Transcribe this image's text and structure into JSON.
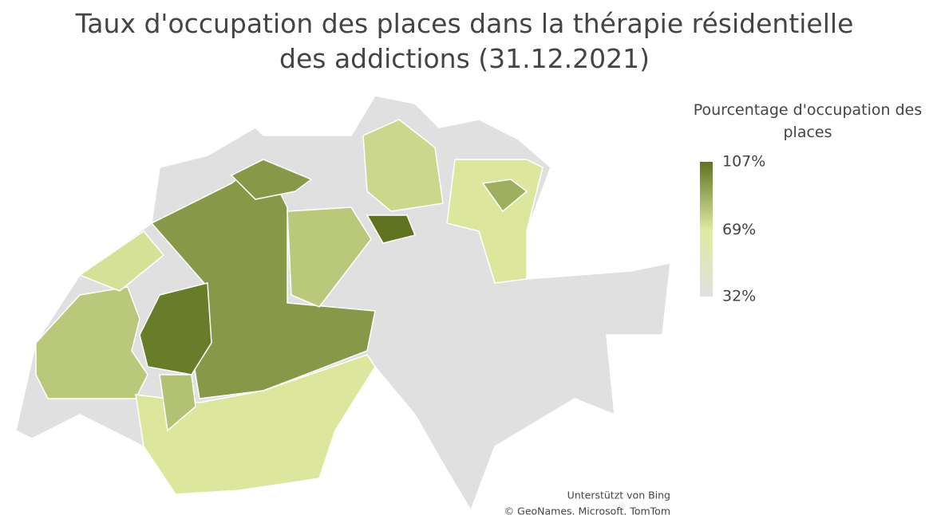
{
  "chart_data": {
    "type": "choropleth",
    "title": "Taux d'occupation des places dans la thérapie résidentielle des addictions (31.12.2021)",
    "values": [
      80,
      72,
      95,
      104,
      95,
      80,
      75,
      107,
      70,
      88,
      70,
      82
    ],
    "legend": {
      "title": "Pourcentage d'occupation des places",
      "ticks": [
        {
          "value": 107,
          "label": "107%"
        },
        {
          "value": 69,
          "label": "69%"
        },
        {
          "value": 32,
          "label": "32%"
        }
      ],
      "colors": [
        "#5f7320",
        "#dfeaa0",
        "#e0e0e0"
      ]
    },
    "attribution": [
      "Unterstützt von Bing",
      "© GeoNames. Microsoft. TomTom"
    ]
  }
}
